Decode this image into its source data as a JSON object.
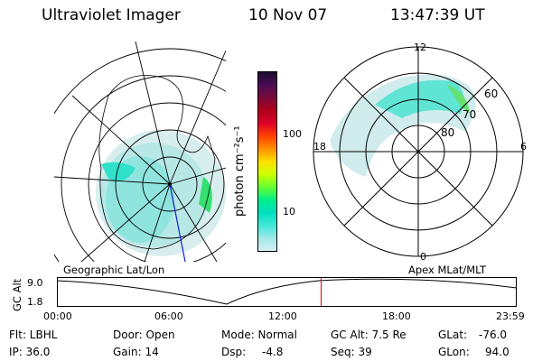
{
  "header": {
    "instrument": "Ultraviolet Imager",
    "date": "10 Nov 07",
    "time": "13:47:39 UT"
  },
  "colorbar": {
    "label": "photon cm⁻²s⁻¹",
    "ticks": [
      "100",
      "10"
    ],
    "colors": [
      "#1a0a2e",
      "#4b0d55",
      "#7a0a3a",
      "#b0001a",
      "#e0002a",
      "#ff4000",
      "#ff9000",
      "#ffe000",
      "#ccff00",
      "#66ff33",
      "#00ee88",
      "#00e0c0",
      "#40e8d8",
      "#a0e8e8",
      "#d8f0f0"
    ]
  },
  "left_panel": {
    "name": "geographic-polar-map",
    "caption": "Geographic Lat/Lon"
  },
  "right_panel": {
    "name": "apex-polar-map",
    "caption": "Apex MLat/MLT",
    "mlt_labels": {
      "top": "12",
      "bottom": "0",
      "left": "18",
      "right": "6"
    },
    "lat_labels": [
      "60",
      "70",
      "80"
    ]
  },
  "timeline": {
    "ylabel": "GC Alt",
    "yticks": [
      "9.0",
      "1.8"
    ],
    "xticks": [
      "00:00",
      "06:00",
      "12:00",
      "18:00",
      "23:59"
    ],
    "current_time_fraction": 0.575
  },
  "footer": {
    "filter": "Flt: LBHL",
    "ip": "IP: 36.0",
    "door": "Door: Open",
    "gain": "Gain: 14",
    "mode": "Mode: Normal",
    "dsp": "Dsp:",
    "dsp_value": "-4.8",
    "gc_alt": "GC Alt: 7.5 Re",
    "seq": "Seq: 39",
    "glat": "GLat:",
    "glat_value": "-76.0",
    "glon": "GLon:",
    "glon_value": "94.0"
  }
}
